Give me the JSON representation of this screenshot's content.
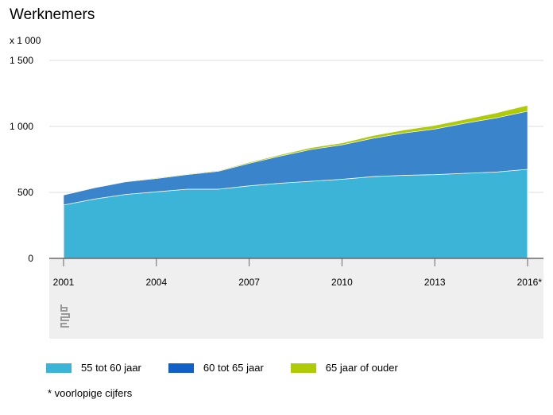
{
  "title": "Werknemers",
  "unit_label": "x 1 000",
  "footnote": "* voorlopige cijfers",
  "logo_text": "cbs",
  "colors": {
    "series_55_60": "#3cb4d8",
    "series_60_65": "#3a84cb",
    "series_65_plus": "#afcb05",
    "gray_band": "#efefef",
    "grid": "#dddddd",
    "axis": "#666666"
  },
  "chart_data": {
    "type": "area",
    "stacked": true,
    "title": "Werknemers",
    "ylabel": "x 1 000",
    "ylim": [
      0,
      1500
    ],
    "yticks": [
      "0",
      "500",
      "1 000",
      "1 500"
    ],
    "ytick_values": [
      0,
      500,
      1000,
      1500
    ],
    "x": [
      2001,
      2002,
      2003,
      2004,
      2005,
      2006,
      2007,
      2008,
      2009,
      2010,
      2011,
      2012,
      2013,
      2014,
      2015,
      2016
    ],
    "xticks": [
      "2001",
      "2004",
      "2007",
      "2010",
      "2013",
      "2016*"
    ],
    "xtick_values": [
      2001,
      2004,
      2007,
      2010,
      2013,
      2016
    ],
    "grid": true,
    "legend_position": "bottom",
    "series": [
      {
        "name": "55 tot 60 jaar",
        "color": "#3cb4d8",
        "values": [
          405,
          450,
          485,
          505,
          525,
          525,
          550,
          570,
          585,
          600,
          620,
          630,
          635,
          645,
          655,
          675
        ]
      },
      {
        "name": "60 tot 65 jaar",
        "color": "#3a84cb",
        "values": [
          75,
          85,
          95,
          100,
          110,
          135,
          170,
          205,
          240,
          260,
          290,
          320,
          345,
          380,
          410,
          440
        ]
      },
      {
        "name": "65 jaar of ouder",
        "color": "#afcb05",
        "values": [
          3,
          3,
          4,
          5,
          5,
          5,
          8,
          10,
          14,
          15,
          20,
          22,
          28,
          30,
          38,
          45
        ]
      }
    ]
  }
}
